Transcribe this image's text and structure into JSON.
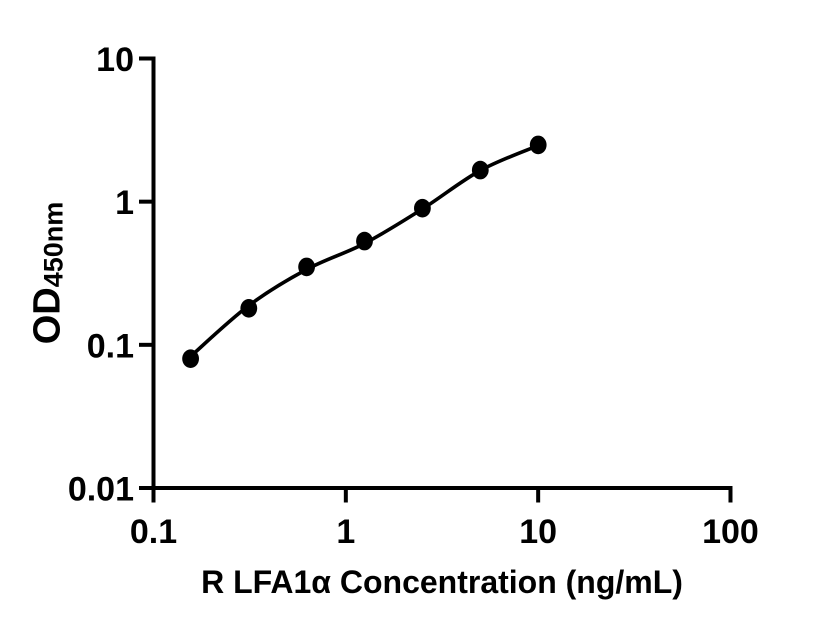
{
  "figure": {
    "background_color": "#ffffff",
    "ink_color": "#000000"
  },
  "chart_data": {
    "type": "scatter",
    "title": "",
    "xlabel": "R LFA1α Concentration (ng/mL)",
    "ylabel": "OD450nm",
    "ylabel_main": "OD",
    "ylabel_sub": "450nm",
    "x_scale": "log10",
    "y_scale": "log10",
    "xlim": [
      0.1,
      100
    ],
    "ylim": [
      0.01,
      10
    ],
    "x_tick_values": [
      0.1,
      1,
      10,
      100
    ],
    "x_tick_labels": [
      "0.1",
      "1",
      "10",
      "100"
    ],
    "y_tick_values": [
      10,
      1,
      0.1,
      0.01
    ],
    "y_tick_labels": [
      "10",
      "1",
      "0.1",
      "0.01"
    ],
    "grid": false,
    "legend": "none",
    "marker": {
      "shape": "filled-circle",
      "color": "#000000"
    },
    "line": {
      "style": "solid",
      "color": "#000000"
    },
    "points": {
      "x": [
        0.156,
        0.313,
        0.625,
        1.25,
        2.5,
        5,
        10
      ],
      "y": [
        0.08,
        0.18,
        0.35,
        0.53,
        0.9,
        1.66,
        2.49
      ]
    },
    "fit_curve": {
      "x": [
        0.156,
        0.313,
        0.625,
        1.25,
        2.5,
        5,
        10
      ],
      "y": [
        0.083,
        0.188,
        0.336,
        0.51,
        0.889,
        1.651,
        2.468
      ]
    }
  }
}
